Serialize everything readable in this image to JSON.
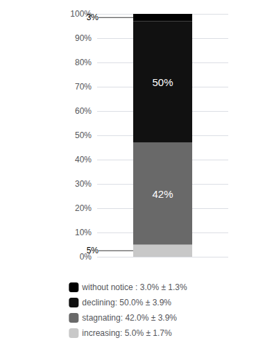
{
  "chart_data": {
    "type": "bar",
    "stacked": true,
    "data_labels": true,
    "grid": true,
    "legend": "bottom",
    "categories": [
      null
    ],
    "series": [
      {
        "name": "increasing: 5.0% ± 1.7%",
        "color": "#c8c8c8",
        "values": [
          5.0
        ],
        "value_labels": [
          "5%"
        ]
      },
      {
        "name": "stagnating: 42.0% ± 3.9%",
        "color": "#696969",
        "values": [
          42.0
        ],
        "value_labels": [
          "42%"
        ]
      },
      {
        "name": "declining: 50.0% ± 3.9%",
        "color": "#111111",
        "values": [
          50.0
        ],
        "value_labels": [
          "50%"
        ]
      },
      {
        "name": "without notice : 3.0% ± 1.3%",
        "color": "#000000",
        "values": [
          3.0
        ],
        "value_labels": [
          "3%"
        ]
      }
    ],
    "ylim": [
      0,
      100
    ],
    "yticks": [
      {
        "value": 0,
        "label": "0%"
      },
      {
        "value": 10,
        "label": "10%"
      },
      {
        "value": 20,
        "label": "20%"
      },
      {
        "value": 30,
        "label": "30%"
      },
      {
        "value": 40,
        "label": "40%"
      },
      {
        "value": 50,
        "label": "50%"
      },
      {
        "value": 60,
        "label": "60%"
      },
      {
        "value": 70,
        "label": "70%"
      },
      {
        "value": 80,
        "label": "80%"
      },
      {
        "value": 90,
        "label": "90%"
      },
      {
        "value": 100,
        "label": "100%"
      }
    ]
  }
}
